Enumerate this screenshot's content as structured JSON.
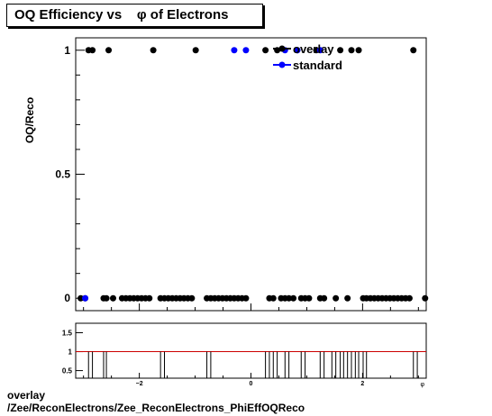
{
  "title": "OQ Efficiency vs    φ of Electrons",
  "footer": {
    "line1": "overlay",
    "line2": "/Zee/ReconElectrons/Zee_ReconElectrons_PhiEffOQReco"
  },
  "colors": {
    "overlay": "#000000",
    "standard": "#0000ff",
    "ratio_line": "#cc0000",
    "frame": "#000000"
  },
  "chart_data": [
    {
      "type": "scatter",
      "ylabel": "OQ/Reco",
      "xlim": [
        -3.14,
        3.14
      ],
      "ylim": [
        -0.05,
        1.05
      ],
      "yticks": [
        0,
        0.5,
        1
      ],
      "ytick_labels": [
        "0",
        "0.5",
        "1"
      ],
      "legend_position": "top-right",
      "series": [
        {
          "name": "overlay",
          "color": "#000000",
          "x": [
            -3.05,
            -2.97,
            -2.91,
            -2.84,
            -2.64,
            -2.59,
            -2.55,
            -2.47,
            -2.31,
            -2.24,
            -2.17,
            -2.1,
            -2.03,
            -1.96,
            -1.89,
            -1.82,
            -1.75,
            -1.62,
            -1.55,
            -1.48,
            -1.41,
            -1.34,
            -1.27,
            -1.2,
            -1.13,
            -1.06,
            -0.99,
            -0.79,
            -0.72,
            -0.65,
            -0.58,
            -0.51,
            -0.44,
            -0.37,
            -0.3,
            -0.23,
            -0.16,
            -0.09,
            0.26,
            0.33,
            0.4,
            0.47,
            0.54,
            0.61,
            0.68,
            0.76,
            0.83,
            0.9,
            0.97,
            1.04,
            1.17,
            1.24,
            1.31,
            1.52,
            1.6,
            1.73,
            1.8,
            1.93,
            2.01,
            2.07,
            2.14,
            2.21,
            2.28,
            2.35,
            2.42,
            2.49,
            2.56,
            2.63,
            2.7,
            2.77,
            2.84,
            2.91,
            3.12
          ],
          "y": [
            0,
            0,
            1,
            1,
            0,
            0,
            1,
            0,
            0,
            0,
            0,
            0,
            0,
            0,
            0,
            0,
            1,
            0,
            0,
            0,
            0,
            0,
            0,
            0,
            0,
            0,
            1,
            0,
            0,
            0,
            0,
            0,
            0,
            0,
            0,
            0,
            0,
            0,
            1,
            0,
            0,
            1,
            0,
            0,
            0,
            0,
            1,
            0,
            0,
            0,
            1,
            0,
            0,
            0,
            1,
            0,
            1,
            1,
            0,
            0,
            0,
            0,
            0,
            0,
            0,
            0,
            0,
            0,
            0,
            0,
            0,
            1,
            0
          ]
        },
        {
          "name": "standard",
          "color": "#0000ff",
          "x": [
            -2.97,
            -0.3,
            -0.09,
            0.61,
            0.83,
            1.24
          ],
          "y": [
            0,
            1,
            1,
            1,
            1,
            1
          ]
        }
      ]
    },
    {
      "type": "line",
      "ylim": [
        0.3,
        1.75
      ],
      "yticks": [
        0.5,
        1,
        1.5
      ],
      "ytick_labels": [
        "0.5",
        "1",
        "1.5"
      ],
      "xlim": [
        -3.14,
        3.14
      ],
      "xticks": [
        -2,
        0,
        2
      ],
      "xtick_labels": [
        "−2",
        "0",
        "2"
      ],
      "xlabel": "φ",
      "ratio_value": 1,
      "ratio_dips": [
        -2.91,
        -2.84,
        -2.64,
        -2.59,
        -1.62,
        -1.55,
        -0.79,
        -0.72,
        0.26,
        0.33,
        0.4,
        0.47,
        0.61,
        0.68,
        0.9,
        0.97,
        1.24,
        1.31,
        1.45,
        1.52,
        1.6,
        1.66,
        1.73,
        1.8,
        1.87,
        1.93,
        2.01,
        2.07,
        2.91,
        2.98
      ],
      "dip_value": 0.3
    }
  ]
}
